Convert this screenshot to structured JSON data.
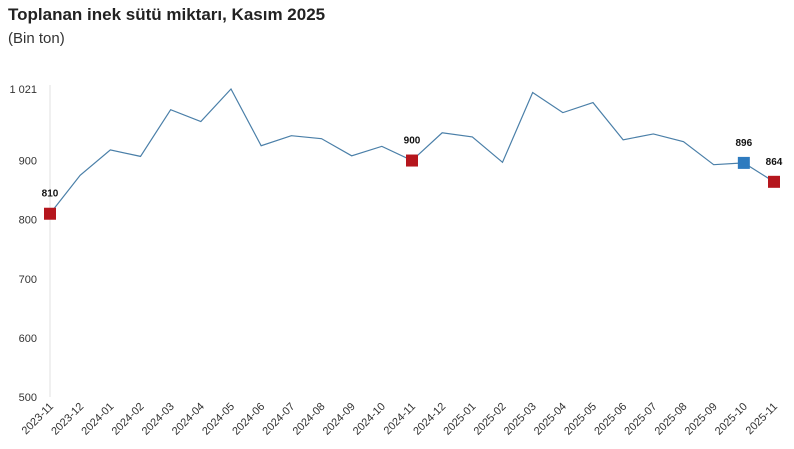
{
  "chart_data": {
    "type": "line",
    "title": "Toplanan inek sütü miktarı, Kasım 2025",
    "subtitle": "(Bin ton)",
    "xlabel": "",
    "ylabel": "",
    "ylim": [
      500,
      1021
    ],
    "yticks": [
      500,
      600,
      700,
      800,
      900,
      1021
    ],
    "ytick_labels": [
      "500",
      "600",
      "700",
      "800",
      "900",
      "1 021"
    ],
    "grid": false,
    "line_color": "#4a7fa8",
    "categories": [
      "2023-11",
      "2023-12",
      "2024-01",
      "2024-02",
      "2024-03",
      "2024-04",
      "2024-05",
      "2024-06",
      "2024-07",
      "2024-08",
      "2024-09",
      "2024-10",
      "2024-11",
      "2024-12",
      "2025-01",
      "2025-02",
      "2025-03",
      "2025-04",
      "2025-05",
      "2025-06",
      "2025-07",
      "2025-08",
      "2025-09",
      "2025-10",
      "2025-11"
    ],
    "values": [
      810,
      875,
      918,
      907,
      986,
      966,
      1021,
      925,
      942,
      937,
      908,
      924,
      900,
      947,
      940,
      897,
      1015,
      981,
      998,
      935,
      945,
      932,
      893,
      896,
      864
    ],
    "highlighted": [
      {
        "index": 0,
        "label": "810",
        "color": "#b5161d"
      },
      {
        "index": 12,
        "label": "900",
        "color": "#b5161d"
      },
      {
        "index": 23,
        "label": "896",
        "color": "#2e7bbf"
      },
      {
        "index": 24,
        "label": "864",
        "color": "#b5161d"
      }
    ]
  }
}
